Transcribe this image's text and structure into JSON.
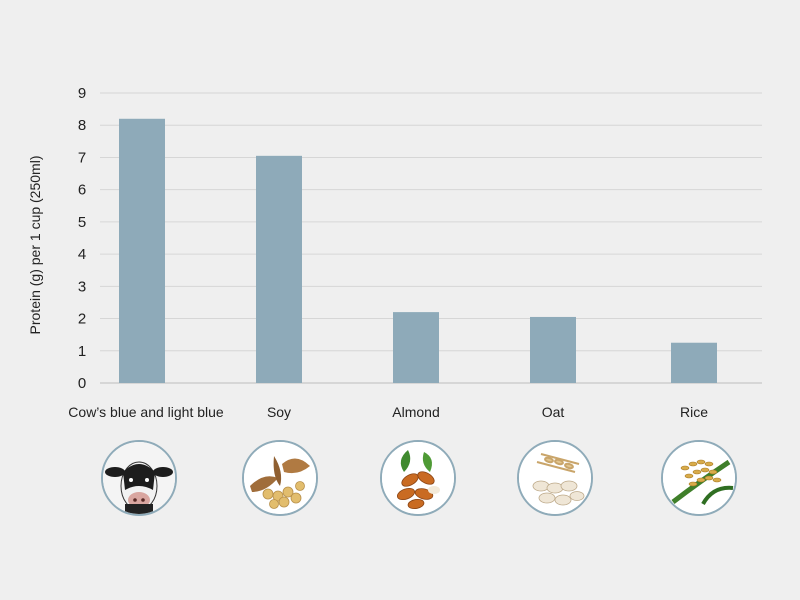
{
  "chart_data": {
    "type": "bar",
    "categories": [
      "Cow’s blue and light blue",
      "Soy",
      "Almond",
      "Oat",
      "Rice"
    ],
    "values": [
      8.2,
      7.05,
      2.2,
      2.05,
      1.25
    ],
    "ylabel": "Protein (g) per 1 cup (250ml)",
    "xlabel": "",
    "ylim": [
      0,
      9
    ],
    "yticks": [
      "0",
      "1",
      "2",
      "3",
      "4",
      "5",
      "6",
      "7",
      "8",
      "9"
    ],
    "grid": true,
    "bar_color": "#8eaab9",
    "grid_color": "#d6d6d6"
  },
  "icons": [
    "cow-icon",
    "soybean-icon",
    "almond-icon",
    "oat-icon",
    "rice-icon"
  ],
  "colors": {
    "background": "#efefef",
    "icon_border": "#8fabb9"
  }
}
